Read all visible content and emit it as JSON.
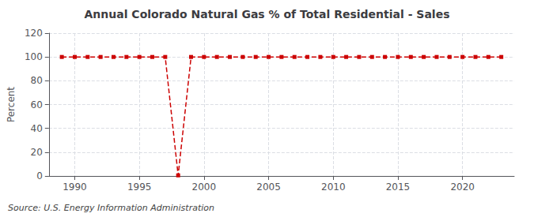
{
  "chart_data": {
    "type": "line",
    "title": "Annual Colorado Natural Gas % of Total Residential - Sales",
    "ylabel": "Percent",
    "source": "Source: U.S. Energy Information Administration",
    "x": [
      1989,
      1990,
      1991,
      1992,
      1993,
      1994,
      1995,
      1996,
      1997,
      1998,
      1999,
      2000,
      2001,
      2002,
      2003,
      2004,
      2005,
      2006,
      2007,
      2008,
      2009,
      2010,
      2011,
      2012,
      2013,
      2014,
      2015,
      2016,
      2017,
      2018,
      2019,
      2020,
      2021,
      2022,
      2023
    ],
    "values": [
      100,
      100,
      100,
      100,
      100,
      100,
      100,
      100,
      100,
      0.5,
      100,
      100,
      100,
      100,
      100,
      100,
      100,
      100,
      100,
      100,
      100,
      100,
      100,
      100,
      100,
      100,
      100,
      100,
      100,
      100,
      100,
      100,
      100,
      100,
      100
    ],
    "color": "#cc0000",
    "marker": "square",
    "line_style": "dashed",
    "xlim": [
      1988,
      2024
    ],
    "xticks": [
      1990,
      1995,
      2000,
      2005,
      2010,
      2015,
      2020
    ],
    "ylim": [
      0,
      120
    ],
    "yticks": [
      0,
      20,
      40,
      60,
      80,
      100,
      120
    ],
    "grid": true
  }
}
